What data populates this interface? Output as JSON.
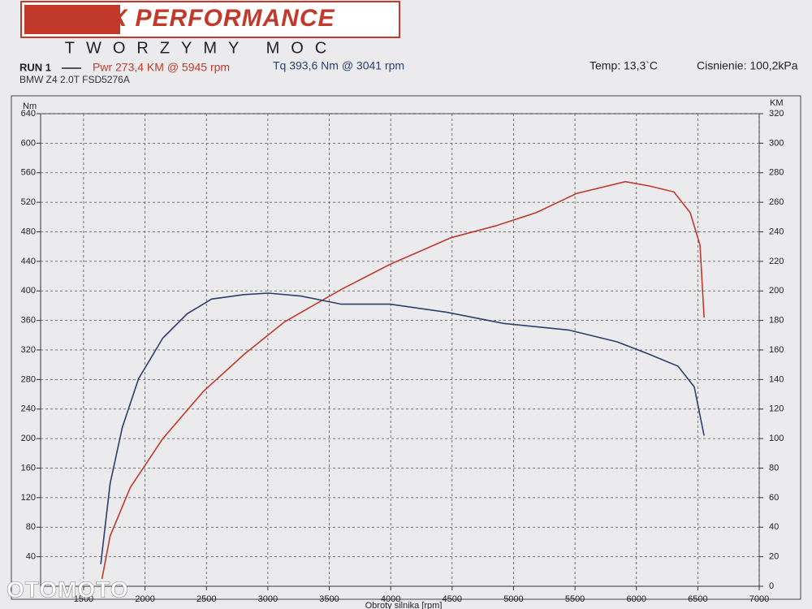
{
  "chart_data": {
    "type": "line",
    "logo": "MAX PERFORMANCE",
    "slogan": "TWORZYMY MOC",
    "run": "RUN 1",
    "temp": "Temp: 13,3`C",
    "pressure": "Cisnienie: 100,2kPa",
    "subtitle": "BMW Z4 2.0T FSD5276A",
    "ylabel": "Nm",
    "y2label": "KM",
    "xlabel": "Obroty silnika [rpm]",
    "watermark": "OTOMOTO",
    "xlim": [
      1150,
      7000
    ],
    "xticks": [
      1500,
      2000,
      2500,
      3000,
      3500,
      4000,
      4500,
      5000,
      5500,
      6000,
      6500,
      7000
    ],
    "ylim": [
      0,
      640
    ],
    "yticks": [
      40,
      80,
      120,
      160,
      200,
      240,
      280,
      320,
      360,
      400,
      440,
      480,
      520,
      560,
      600,
      640
    ],
    "y2lim": [
      0,
      320
    ],
    "y2ticks": [
      0,
      20,
      40,
      60,
      80,
      100,
      120,
      140,
      160,
      180,
      200,
      220,
      240,
      260,
      280,
      300,
      320
    ],
    "grid": true,
    "series": [
      {
        "name": "Pwr 273,4 KM @ 5945 rpm",
        "color": "#c0392b",
        "axis": "y2",
        "x": [
          1650,
          1716,
          1881,
          2145,
          2476,
          2806,
          3136,
          3598,
          3995,
          4490,
          4853,
          5184,
          5514,
          5910,
          6108,
          6306,
          6438,
          6518,
          6551
        ],
        "values": [
          5,
          34,
          67,
          100,
          132,
          157,
          179,
          201,
          218,
          236,
          244,
          253,
          266,
          274,
          271,
          267,
          253,
          231,
          182
        ]
      },
      {
        "name": "Tq 393,6 Nm @ 3041 rpm",
        "color": "#2c3e6b",
        "x": [
          1640,
          1716,
          1815,
          1947,
          2145,
          2343,
          2542,
          2806,
          3004,
          3268,
          3598,
          3995,
          4457,
          4919,
          5448,
          5844,
          6108,
          6339,
          6471,
          6551
        ],
        "values": [
          30,
          139,
          215,
          281,
          336,
          369,
          389,
          395,
          397,
          393,
          382,
          382,
          371,
          356,
          347,
          331,
          314,
          298,
          270,
          204
        ]
      }
    ]
  }
}
